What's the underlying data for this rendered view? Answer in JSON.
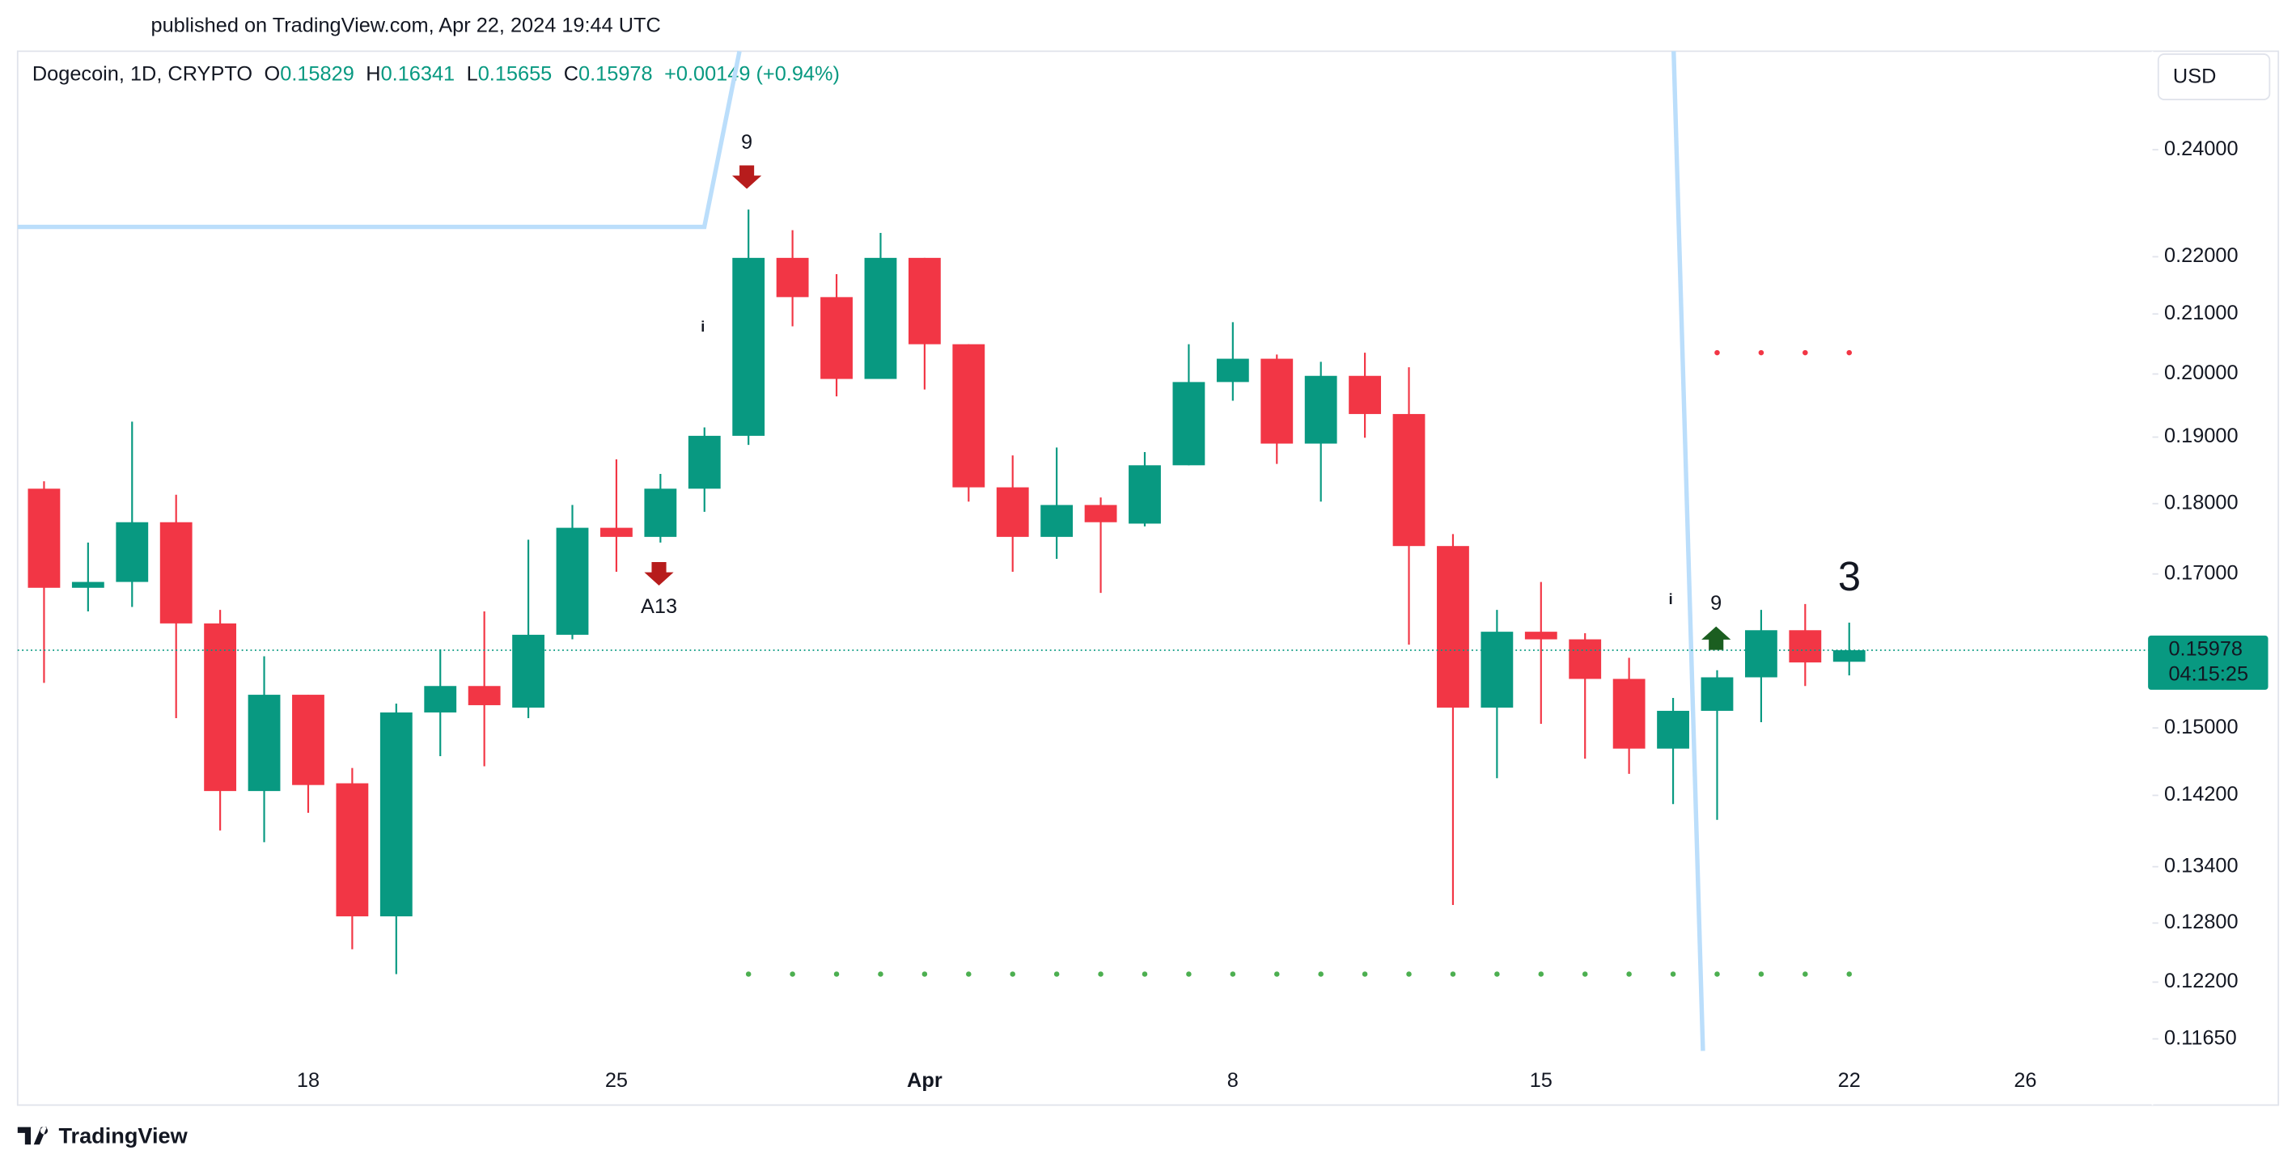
{
  "published": "published on TradingView.com, Apr 22, 2024 19:44 UTC",
  "header": {
    "symbol": "Dogecoin, 1D, CRYPTO",
    "open_label": "O",
    "high_label": "H",
    "low_label": "L",
    "close_label": "C",
    "change": "+0.00149 (+0.94%)"
  },
  "currency": "USD",
  "countdown": "04:15:25",
  "footer": {
    "logo": "TradingView"
  },
  "chart_data": {
    "type": "candlestick",
    "log_scale": true,
    "up_color": "#089981",
    "down_color": "#f23645",
    "categories": [
      null,
      null,
      null,
      null,
      null,
      null,
      "18",
      null,
      null,
      null,
      null,
      null,
      null,
      "25",
      null,
      null,
      null,
      null,
      null,
      null,
      "Apr",
      null,
      null,
      null,
      null,
      null,
      null,
      "8",
      null,
      null,
      null,
      null,
      null,
      null,
      "15",
      null,
      null,
      null,
      null,
      null,
      null,
      "22",
      null,
      null,
      null,
      "26",
      null,
      null
    ],
    "open": [
      0.1822,
      0.1681,
      0.1689,
      0.1773,
      0.1633,
      0.1425,
      0.1541,
      0.1434,
      0.1287,
      0.1519,
      0.1552,
      0.1525,
      0.1618,
      0.1765,
      0.1752,
      0.1822,
      0.1902,
      0.2198,
      0.2129,
      0.1992,
      0.2198,
      0.2049,
      0.1824,
      0.1752,
      0.1798,
      0.1771,
      0.1857,
      0.1987,
      0.2025,
      0.189,
      0.1997,
      0.1936,
      0.1739,
      0.1525,
      0.1622,
      0.1612,
      0.1561,
      0.1475,
      0.1521,
      0.1563,
      0.1624,
      0.15829,
      null,
      null,
      null,
      null,
      null,
      null
    ],
    "high": [
      0.1833,
      0.1744,
      0.1924,
      0.1813,
      0.1651,
      0.159,
      0.1541,
      0.1452,
      0.153,
      0.1599,
      0.1649,
      0.1748,
      0.1798,
      0.1866,
      0.1844,
      0.1915,
      0.2286,
      0.2248,
      0.2169,
      0.2243,
      0.2198,
      0.2049,
      0.1872,
      0.1884,
      0.1809,
      0.1877,
      0.2049,
      0.2086,
      0.2032,
      0.202,
      0.2035,
      0.2011,
      0.1756,
      0.1651,
      0.1689,
      0.162,
      0.1588,
      0.1537,
      0.1572,
      0.1651,
      0.1659,
      0.16341,
      null,
      null,
      null,
      null,
      null,
      null
    ],
    "low": [
      0.1556,
      0.1649,
      0.1655,
      0.1512,
      0.138,
      0.1367,
      0.14,
      0.1253,
      0.1228,
      0.1466,
      0.1454,
      0.1512,
      0.1612,
      0.1703,
      0.1744,
      0.1788,
      0.1888,
      0.2079,
      0.1964,
      0.1992,
      0.1975,
      0.1803,
      0.1703,
      0.1721,
      0.1674,
      0.1767,
      0.1857,
      0.1957,
      0.1859,
      0.1803,
      0.1899,
      0.1605,
      0.1299,
      0.144,
      0.1505,
      0.1463,
      0.1445,
      0.141,
      0.1392,
      0.1507,
      0.1552,
      0.15655,
      null,
      null,
      null,
      null,
      null,
      null
    ],
    "close": [
      0.1681,
      0.1689,
      0.1773,
      0.1633,
      0.1425,
      0.1541,
      0.1432,
      0.1287,
      0.1519,
      0.1552,
      0.1528,
      0.1618,
      0.1765,
      0.1752,
      0.1822,
      0.1902,
      0.2198,
      0.2129,
      0.1992,
      0.2198,
      0.2049,
      0.1824,
      0.1752,
      0.1798,
      0.1773,
      0.1857,
      0.1987,
      0.2025,
      0.189,
      0.1997,
      0.1936,
      0.1739,
      0.1525,
      0.1622,
      0.1612,
      0.1561,
      0.1475,
      0.1521,
      0.1563,
      0.1624,
      0.1582,
      0.15978,
      null,
      null,
      null,
      null,
      null,
      null
    ],
    "ylim": [
      0.114,
      0.26
    ],
    "yticks": [
      {
        "value": 0.24,
        "label": "0.24000"
      },
      {
        "value": 0.22,
        "label": "0.22000"
      },
      {
        "value": 0.21,
        "label": "0.21000"
      },
      {
        "value": 0.2,
        "label": "0.20000"
      },
      {
        "value": 0.19,
        "label": "0.19000"
      },
      {
        "value": 0.18,
        "label": "0.18000"
      },
      {
        "value": 0.17,
        "label": "0.17000"
      },
      {
        "value": 0.15,
        "label": "0.15000"
      },
      {
        "value": 0.142,
        "label": "0.14200"
      },
      {
        "value": 0.134,
        "label": "0.13400"
      },
      {
        "value": 0.128,
        "label": "0.12800"
      },
      {
        "value": 0.122,
        "label": "0.12200"
      },
      {
        "value": 0.1165,
        "label": "0.11650"
      }
    ],
    "levels": [
      {
        "value": 0.2035,
        "color": "#f23645",
        "from": 38,
        "to": 41
      },
      {
        "value": 0.1228,
        "color": "#4caf50",
        "from": 16,
        "to": 41
      }
    ],
    "annotations": [
      {
        "text": "9",
        "color": "#22c55e"
      },
      {
        "text": "A13",
        "color": "#2196f3"
      },
      {
        "text": "i",
        "color": "#ff9800"
      },
      {
        "text": "i",
        "color": "#ff9800"
      },
      {
        "text": "9",
        "color": "#f23645"
      },
      {
        "text": "3",
        "color": "#22c55e"
      }
    ]
  }
}
